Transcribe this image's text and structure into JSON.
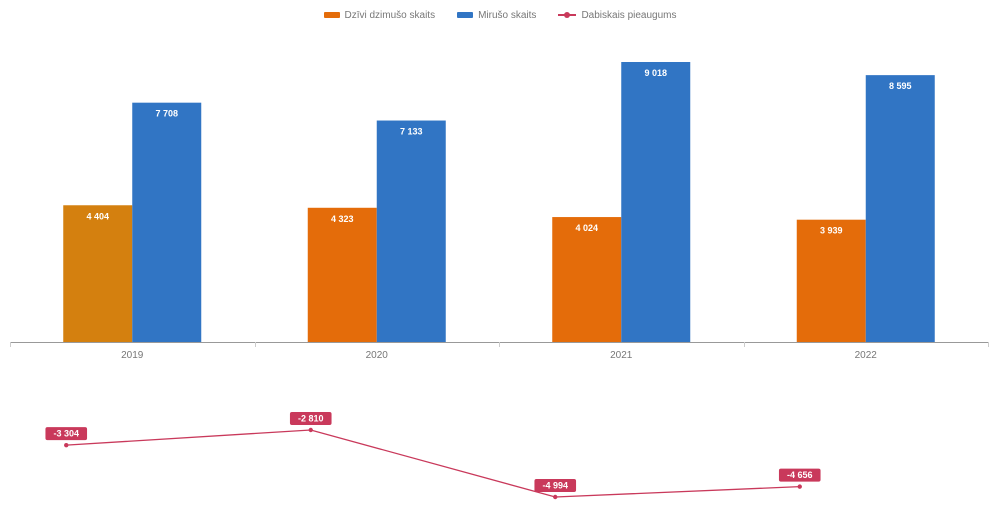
{
  "chart_data": {
    "type": "bar",
    "categories": [
      "2019",
      "2020",
      "2021",
      "2022"
    ],
    "series": [
      {
        "name": "Dzīvi dzimušo skaits",
        "type": "bar",
        "color": "#e46c0a",
        "values": [
          4404,
          4323,
          4024,
          3939
        ]
      },
      {
        "name": "Mirušo skaits",
        "type": "bar",
        "color": "#3175c4",
        "values": [
          7708,
          7133,
          9018,
          8595
        ]
      },
      {
        "name": "Dabiskais pieaugums",
        "type": "line",
        "color": "#c9395b",
        "values": [
          -3304,
          -2810,
          -4994,
          -4656
        ]
      }
    ],
    "highlight": {
      "category": "2019",
      "series": "Dzīvi dzimušo skaits",
      "color": "#d4800f"
    },
    "labels": {
      "births": [
        "4 404",
        "4 323",
        "4 024",
        "3 939"
      ],
      "deaths": [
        "7 708",
        "7 133",
        "9 018",
        "8 595"
      ],
      "growth": [
        "-3 304",
        "-2 810",
        "-4 994",
        "-4 656"
      ]
    },
    "legend_position": "top-center",
    "grid": false,
    "axis_line_color": "#999999"
  }
}
